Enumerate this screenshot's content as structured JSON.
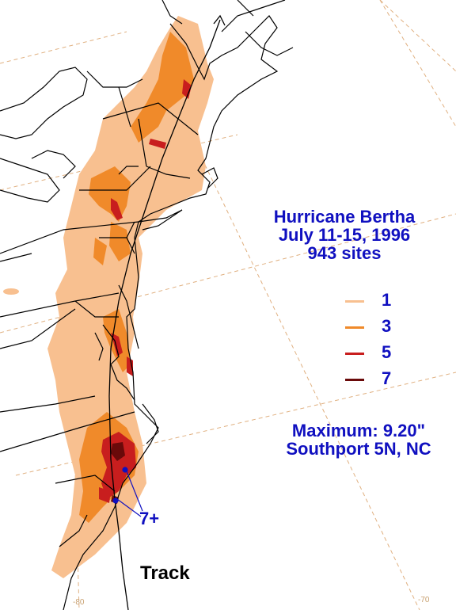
{
  "title": {
    "line1": "Hurricane Bertha",
    "line2": "July 11-15, 1996",
    "line3": "943 sites"
  },
  "legend": [
    {
      "label": "1",
      "color": "#f8c090"
    },
    {
      "label": "3",
      "color": "#f08a2a"
    },
    {
      "label": "5",
      "color": "#c81e1e"
    },
    {
      "label": "7",
      "color": "#6a0a0a"
    }
  ],
  "maximum": {
    "line1": "Maximum:  9.20\"",
    "line2": "Southport 5N, NC"
  },
  "max_marker_label": "7+",
  "track_label": "Track",
  "longitude_labels": [
    "-80",
    "-70"
  ],
  "colors": {
    "text": "#1010c0",
    "graticule": "#e0b080",
    "track": "#000000"
  }
}
